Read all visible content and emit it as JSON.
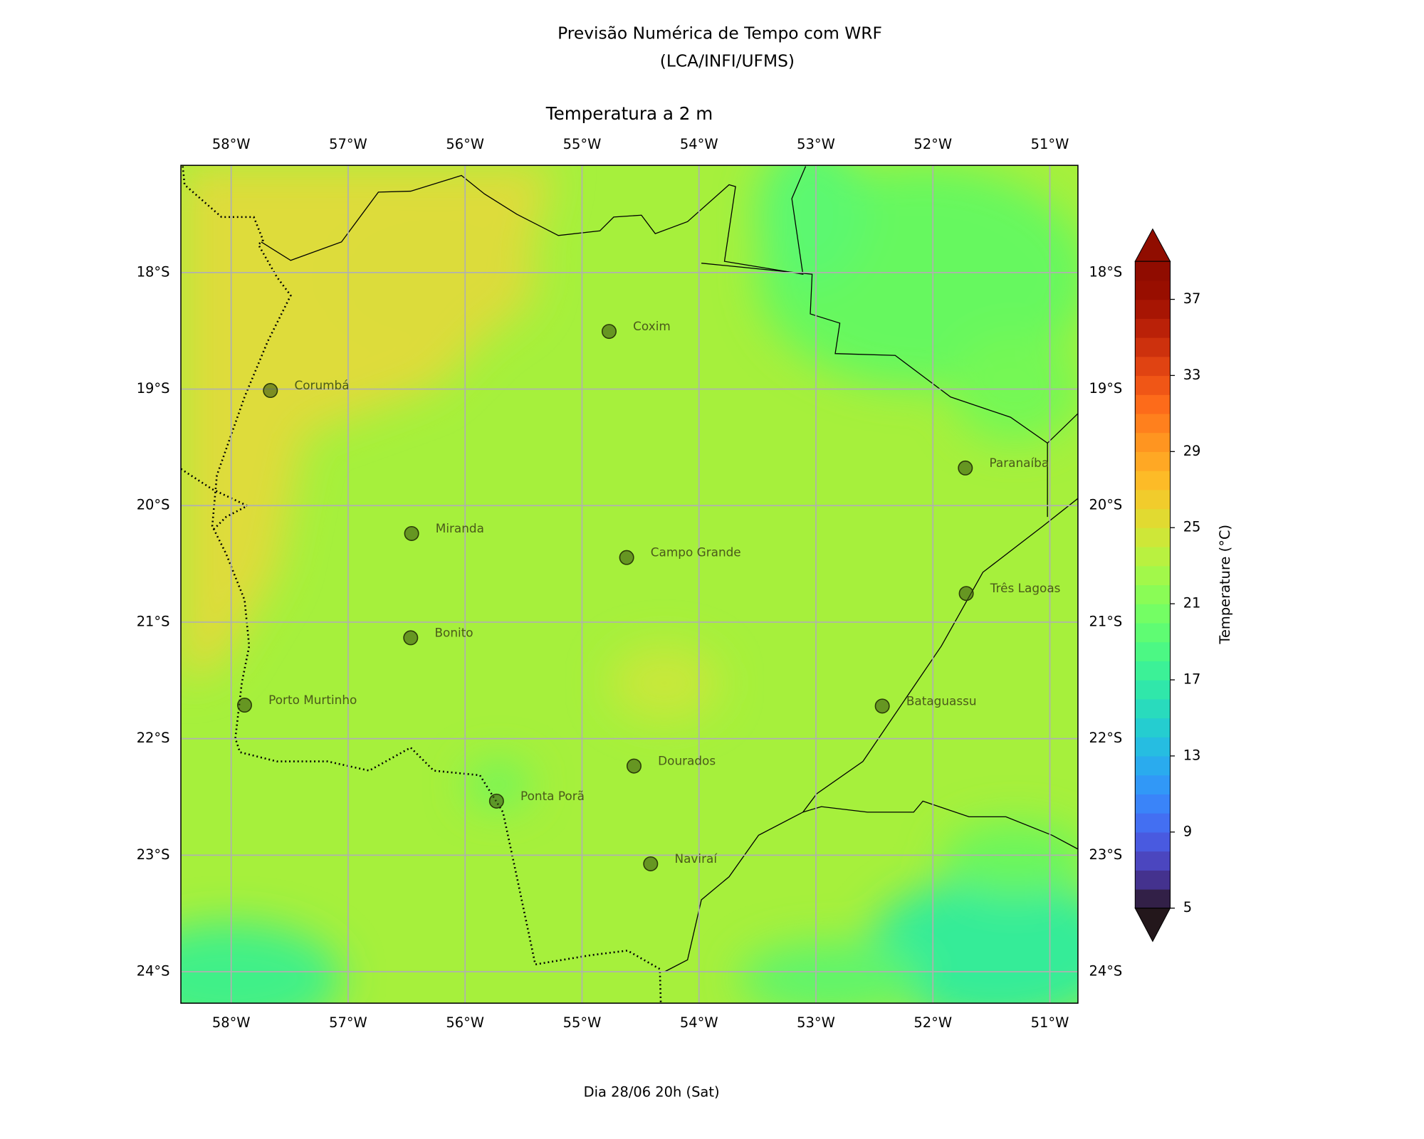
{
  "chart_data": {
    "type": "map",
    "title": [
      "Previsão Numérica de Tempo com WRF",
      "(LCA/INFI/UFMS)"
    ],
    "subtitle": "Temperatura a 2 m",
    "footer": "Dia 28/06 20h (Sat)",
    "xlim": [
      -58.43,
      -50.76
    ],
    "ylim": [
      -24.27,
      -17.08
    ],
    "xticks": [
      {
        "value": -58,
        "label": "58°W"
      },
      {
        "value": -57,
        "label": "57°W"
      },
      {
        "value": -56,
        "label": "56°W"
      },
      {
        "value": -55,
        "label": "55°W"
      },
      {
        "value": -54,
        "label": "54°W"
      },
      {
        "value": -53,
        "label": "53°W"
      },
      {
        "value": -52,
        "label": "52°W"
      },
      {
        "value": -51,
        "label": "51°W"
      }
    ],
    "yticks": [
      {
        "value": -18,
        "label": "18°S"
      },
      {
        "value": -19,
        "label": "19°S"
      },
      {
        "value": -20,
        "label": "20°S"
      },
      {
        "value": -21,
        "label": "21°S"
      },
      {
        "value": -22,
        "label": "22°S"
      },
      {
        "value": -23,
        "label": "23°S"
      },
      {
        "value": -24,
        "label": "24°S"
      }
    ],
    "grid": true,
    "cities": [
      "Coxim",
      "Corumbá",
      "Paranaíba",
      "Miranda",
      "Campo Grande",
      "Três Lagoas",
      "Bonito",
      "Porto Murtinho",
      "Bataguassu",
      "Dourados",
      "Ponta Porã",
      "Naviraí"
    ],
    "colorbar": {
      "label": "Temperature (°C)",
      "colormap": "turbo",
      "clim": [
        5,
        39
      ],
      "ticks": [
        5,
        9,
        13,
        17,
        21,
        25,
        29,
        33,
        37
      ]
    }
  }
}
